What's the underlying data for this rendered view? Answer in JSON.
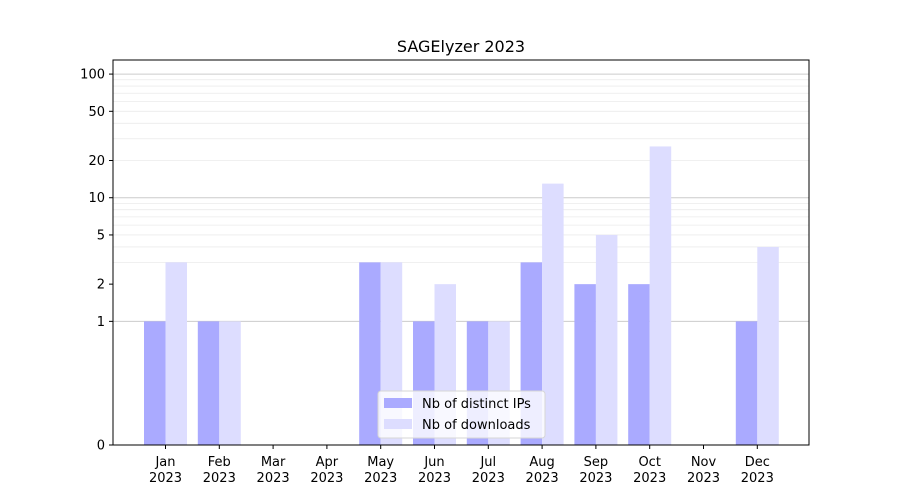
{
  "chart_data": {
    "type": "bar",
    "title": "SAGElyzer 2023",
    "xlabel": "",
    "ylabel": "",
    "y_scale": "symlog",
    "ylim": [
      0,
      130
    ],
    "yticks": [
      0,
      1,
      2,
      5,
      10,
      20,
      50,
      100
    ],
    "ytick_labels": [
      "0",
      "1",
      "2",
      "5",
      "10",
      "20",
      "50",
      "100"
    ],
    "categories": [
      "Jan\n2023",
      "Feb\n2023",
      "Mar\n2023",
      "Apr\n2023",
      "May\n2023",
      "Jun\n2023",
      "Jul\n2023",
      "Aug\n2023",
      "Sep\n2023",
      "Oct\n2023",
      "Nov\n2023",
      "Dec\n2023"
    ],
    "series": [
      {
        "name": "Nb of distinct IPs",
        "color": "#aaaaff",
        "values": [
          1,
          1,
          0,
          0,
          3,
          1,
          1,
          3,
          2,
          2,
          0,
          1
        ]
      },
      {
        "name": "Nb of downloads",
        "color": "#ddddff",
        "values": [
          3,
          1,
          0,
          0,
          3,
          2,
          1,
          13,
          5,
          26,
          0,
          4
        ]
      }
    ],
    "grid": "horizontal",
    "legend_position": "lower-center"
  }
}
